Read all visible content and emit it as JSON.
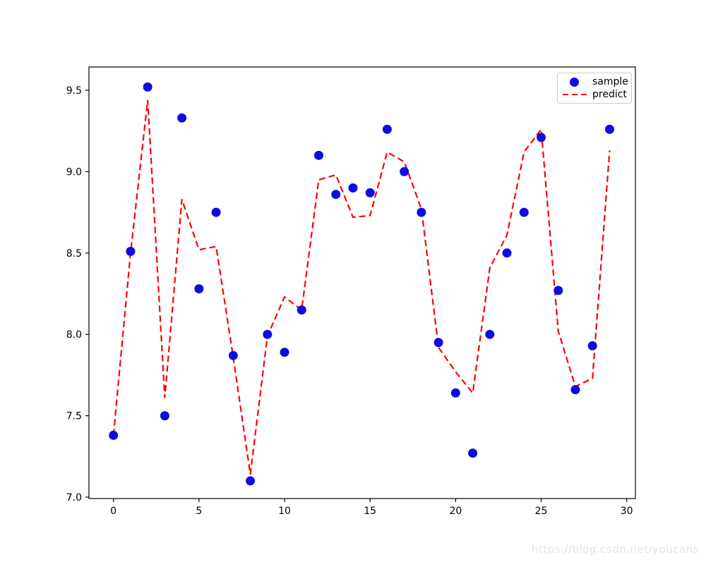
{
  "watermark": {
    "text": "https://blog.csdn.net/youcans"
  },
  "legend": {
    "items": [
      {
        "label": "sample",
        "marker": "dot-icon",
        "color": "#0d0de0"
      },
      {
        "label": "predict",
        "marker": "dashed-line-icon",
        "color": "#ff0000"
      }
    ],
    "position": "upper right"
  },
  "chart_data": {
    "type": "scatter",
    "title": "",
    "xlabel": "",
    "ylabel": "",
    "grid": false,
    "legend_position": "upper right",
    "x": [
      0,
      1,
      2,
      3,
      4,
      5,
      6,
      7,
      8,
      9,
      10,
      11,
      12,
      13,
      14,
      15,
      16,
      17,
      18,
      19,
      20,
      21,
      22,
      23,
      24,
      25,
      26,
      27,
      28,
      29
    ],
    "series": [
      {
        "name": "sample",
        "type": "scatter",
        "marker": "circle",
        "color": "#0d0de0",
        "values": [
          7.38,
          8.51,
          9.52,
          7.5,
          9.33,
          8.28,
          8.75,
          7.87,
          7.1,
          8.0,
          7.89,
          8.15,
          9.1,
          8.86,
          8.9,
          8.87,
          9.26,
          9.0,
          8.75,
          7.95,
          7.64,
          7.27,
          8.0,
          8.5,
          8.75,
          9.21,
          8.27,
          7.66,
          7.93,
          9.26
        ]
      },
      {
        "name": "predict",
        "type": "line",
        "linestyle": "dashed",
        "color": "#ff0000",
        "values": [
          7.38,
          8.5,
          9.44,
          7.61,
          8.83,
          8.52,
          8.54,
          7.86,
          7.14,
          7.99,
          8.23,
          8.15,
          8.95,
          8.98,
          8.72,
          8.73,
          9.12,
          9.06,
          8.77,
          7.92,
          7.77,
          7.64,
          8.41,
          8.61,
          9.12,
          9.26,
          8.02,
          7.68,
          7.73,
          9.13
        ]
      }
    ],
    "x_ticks": [
      0,
      5,
      10,
      15,
      20,
      25,
      30
    ],
    "x_tick_labels": [
      "0",
      "5",
      "10",
      "15",
      "20",
      "25",
      "30"
    ],
    "y_ticks": [
      7.0,
      7.5,
      8.0,
      8.5,
      9.0,
      9.5
    ],
    "y_tick_labels": [
      "7.0",
      "7.5",
      "8.0",
      "8.5",
      "9.0",
      "9.5"
    ],
    "xlim": [
      -1.45,
      30.45
    ],
    "ylim": [
      6.99,
      9.64
    ]
  }
}
